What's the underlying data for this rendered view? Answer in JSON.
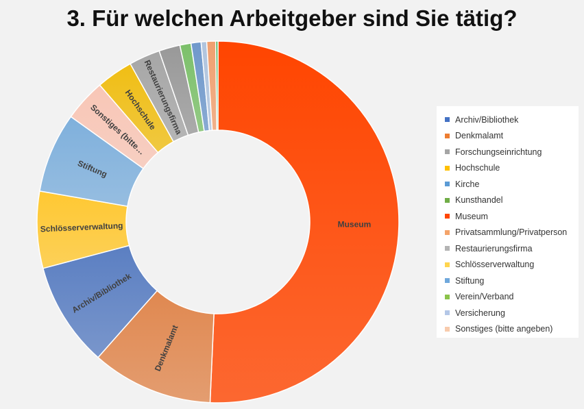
{
  "chart_data": {
    "type": "donut",
    "title": "3. Für welchen Arbeitgeber sind Sie tätig?",
    "legend_position": "right",
    "slices": [
      {
        "name": "Museum",
        "value": 51.0,
        "color": "#ff4500",
        "label": "Museum"
      },
      {
        "name": "Denkmalamt",
        "value": 10.9,
        "color": "#e08850",
        "label": "Denkmalamt"
      },
      {
        "name": "Archiv/Bibliothek",
        "value": 9.4,
        "color": "#5b7fc2",
        "label": "Archiv/Bibliothek"
      },
      {
        "name": "Schlösserverwaltung",
        "value": 6.9,
        "color": "#ffc832",
        "label": "Schlösserverwaltung"
      },
      {
        "name": "Stiftung",
        "value": 7.2,
        "color": "#7fb0dc",
        "label": "Stiftung"
      },
      {
        "name": "Sonstiges (bitte angeben)",
        "value": 3.8,
        "color": "#f8c6b6",
        "label": "Sonstiges (bitte…"
      },
      {
        "name": "Hochschule",
        "value": 3.3,
        "color": "#f0be14",
        "label": "Hochschule"
      },
      {
        "name": "Restaurierungsfirma",
        "value": 2.8,
        "color": "#a6a6a6",
        "label": "Restaurierungsfirma"
      },
      {
        "name": "Forschungseinrichtung",
        "value": 1.9,
        "color": "#999999",
        "label": ""
      },
      {
        "name": "Verein/Verband",
        "value": 1.0,
        "color": "#7cc06a",
        "label": ""
      },
      {
        "name": "Kirche",
        "value": 0.9,
        "color": "#6f98cb",
        "label": ""
      },
      {
        "name": "Versicherung",
        "value": 0.5,
        "color": "#b0c4de",
        "label": ""
      },
      {
        "name": "Privatsammlung/Privatperson",
        "value": 0.8,
        "color": "#f0a070",
        "label": ""
      },
      {
        "name": "Kunsthandel",
        "value": 0.2,
        "color": "#4caf50",
        "label": ""
      }
    ]
  },
  "legend": [
    {
      "label": "Archiv/Bibliothek",
      "color": "#4472c4"
    },
    {
      "label": "Denkmalamt",
      "color": "#ed7d31"
    },
    {
      "label": "Forschungseinrichtung",
      "color": "#a5a5a5"
    },
    {
      "label": "Hochschule",
      "color": "#ffc000"
    },
    {
      "label": "Kirche",
      "color": "#5b9bd5"
    },
    {
      "label": "Kunsthandel",
      "color": "#70ad47"
    },
    {
      "label": "Museum",
      "color": "#ff4500"
    },
    {
      "label": "Privatsammlung/Privatperson",
      "color": "#f4a46a"
    },
    {
      "label": "Restaurierungsfirma",
      "color": "#b4b4b4"
    },
    {
      "label": "Schlösserverwaltung",
      "color": "#ffd54f"
    },
    {
      "label": "Stiftung",
      "color": "#6fa8dc"
    },
    {
      "label": "Verein/Verband",
      "color": "#8bc34a"
    },
    {
      "label": "Versicherung",
      "color": "#b4c7e7"
    },
    {
      "label": "Sonstiges (bitte angeben)",
      "color": "#f8cbad"
    }
  ]
}
